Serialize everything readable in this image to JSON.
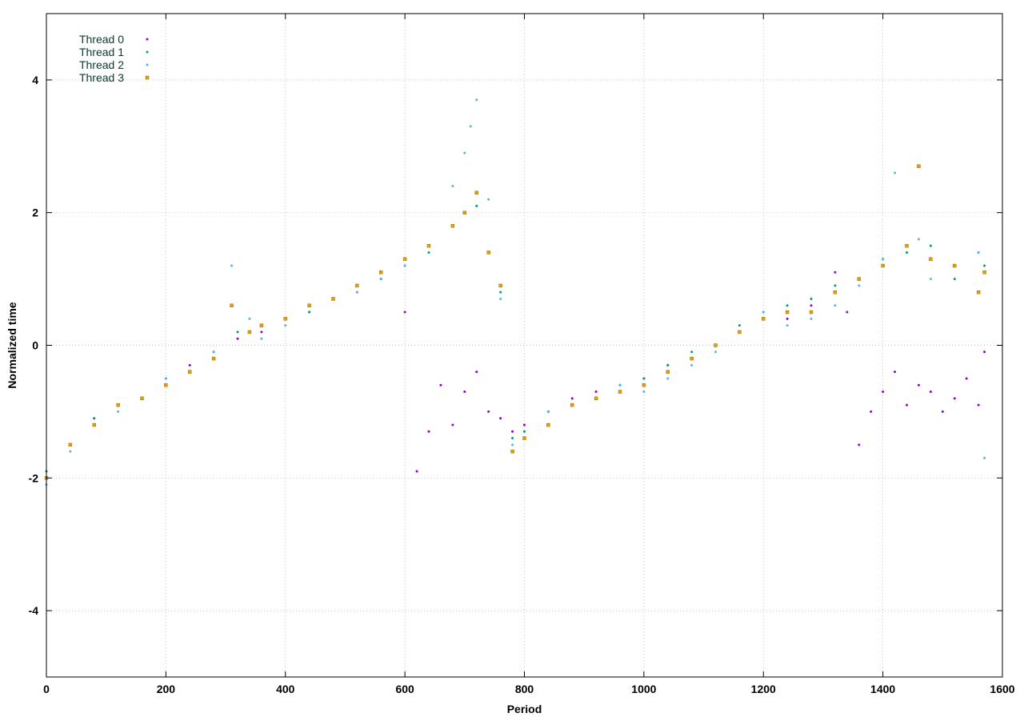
{
  "chart_data": {
    "type": "scatter",
    "xlabel": "Period",
    "ylabel": "Normalized time",
    "xlim": [
      0,
      1600
    ],
    "ylim": [
      -5,
      5
    ],
    "xticks": [
      0,
      200,
      400,
      600,
      800,
      1000,
      1200,
      1400,
      1600
    ],
    "yticks": [
      -4,
      -2,
      0,
      2,
      4
    ],
    "grid": true,
    "legend_position": "top-left",
    "series": [
      {
        "name": "Thread 0",
        "color": "#9400d3",
        "marker": "dot",
        "x": [
          0,
          40,
          80,
          120,
          160,
          200,
          240,
          280,
          320,
          360,
          400,
          440,
          480,
          520,
          560,
          600,
          620,
          640,
          660,
          680,
          700,
          720,
          740,
          760,
          780,
          800,
          840,
          880,
          920,
          960,
          1000,
          1040,
          1080,
          1120,
          1160,
          1200,
          1240,
          1280,
          1320,
          1340,
          1360,
          1380,
          1400,
          1420,
          1440,
          1460,
          1480,
          1500,
          1520,
          1540,
          1560,
          1570
        ],
        "y": [
          -2.0,
          -1.5,
          -1.1,
          -0.9,
          -0.8,
          -0.5,
          -0.3,
          -0.1,
          0.1,
          0.2,
          0.4,
          0.5,
          0.7,
          0.8,
          1.0,
          0.5,
          -1.9,
          -1.3,
          -0.6,
          -1.2,
          -0.7,
          -0.4,
          -1.0,
          -1.1,
          -1.3,
          -1.2,
          -1.0,
          -0.8,
          -0.7,
          -0.6,
          -0.5,
          -0.3,
          -0.2,
          0.0,
          0.2,
          0.4,
          0.4,
          0.6,
          1.1,
          0.5,
          -1.5,
          -1.0,
          -0.7,
          -0.4,
          -0.9,
          -0.6,
          -0.7,
          -1.0,
          -0.8,
          -0.5,
          -0.9,
          -0.1
        ]
      },
      {
        "name": "Thread 1",
        "color": "#009e73",
        "marker": "dot",
        "x": [
          0,
          40,
          80,
          120,
          160,
          200,
          240,
          280,
          320,
          360,
          400,
          440,
          480,
          520,
          560,
          600,
          640,
          680,
          720,
          760,
          780,
          800,
          840,
          880,
          920,
          960,
          1000,
          1040,
          1080,
          1120,
          1160,
          1200,
          1240,
          1280,
          1320,
          1360,
          1400,
          1440,
          1480,
          1520,
          1560,
          1570
        ],
        "y": [
          -1.9,
          -1.5,
          -1.1,
          -0.9,
          -0.8,
          -0.6,
          -0.4,
          -0.2,
          0.2,
          0.3,
          0.4,
          0.5,
          0.7,
          0.9,
          1.0,
          1.2,
          1.4,
          1.8,
          2.1,
          0.8,
          -1.4,
          -1.3,
          -1.0,
          -0.9,
          -0.8,
          -0.6,
          -0.5,
          -0.3,
          -0.1,
          0.0,
          0.3,
          0.5,
          0.6,
          0.7,
          0.9,
          1.0,
          1.3,
          1.4,
          1.5,
          1.0,
          1.4,
          1.2
        ]
      },
      {
        "name": "Thread 2",
        "color": "#56b4e9",
        "marker": "dot",
        "x": [
          0,
          40,
          80,
          120,
          160,
          200,
          240,
          280,
          310,
          340,
          360,
          400,
          440,
          480,
          520,
          560,
          600,
          640,
          680,
          700,
          710,
          720,
          740,
          760,
          780,
          800,
          840,
          880,
          920,
          960,
          1000,
          1040,
          1080,
          1120,
          1160,
          1200,
          1240,
          1280,
          1320,
          1360,
          1400,
          1420,
          1440,
          1460,
          1480,
          1520,
          1560,
          1570
        ],
        "y": [
          -2.1,
          -1.6,
          -1.2,
          -1.0,
          -0.8,
          -0.5,
          -0.4,
          -0.1,
          1.2,
          0.4,
          0.1,
          0.3,
          0.6,
          0.7,
          0.8,
          1.0,
          1.2,
          1.5,
          2.4,
          2.9,
          3.3,
          3.7,
          2.2,
          0.7,
          -1.5,
          -1.4,
          -1.0,
          -0.9,
          -0.8,
          -0.6,
          -0.7,
          -0.5,
          -0.3,
          -0.1,
          0.2,
          0.5,
          0.3,
          0.4,
          0.6,
          0.9,
          1.3,
          2.6,
          1.5,
          1.6,
          1.0,
          1.2,
          1.4,
          -1.7
        ]
      },
      {
        "name": "Thread 3",
        "color": "#e69f00",
        "marker": "square",
        "x": [
          0,
          40,
          80,
          120,
          160,
          200,
          240,
          280,
          310,
          340,
          360,
          400,
          440,
          480,
          520,
          560,
          600,
          640,
          680,
          700,
          720,
          740,
          760,
          780,
          800,
          840,
          880,
          920,
          960,
          1000,
          1040,
          1080,
          1120,
          1160,
          1200,
          1240,
          1280,
          1320,
          1360,
          1400,
          1440,
          1460,
          1480,
          1520,
          1560,
          1570
        ],
        "y": [
          -2.0,
          -1.5,
          -1.2,
          -0.9,
          -0.8,
          -0.6,
          -0.4,
          -0.2,
          0.6,
          0.2,
          0.3,
          0.4,
          0.6,
          0.7,
          0.9,
          1.1,
          1.3,
          1.5,
          1.8,
          2.0,
          2.3,
          1.4,
          0.9,
          -1.6,
          -1.4,
          -1.2,
          -0.9,
          -0.8,
          -0.7,
          -0.6,
          -0.4,
          -0.2,
          0.0,
          0.2,
          0.4,
          0.5,
          0.5,
          0.8,
          1.0,
          1.2,
          1.5,
          2.7,
          1.3,
          1.2,
          0.8,
          1.1
        ]
      }
    ]
  }
}
